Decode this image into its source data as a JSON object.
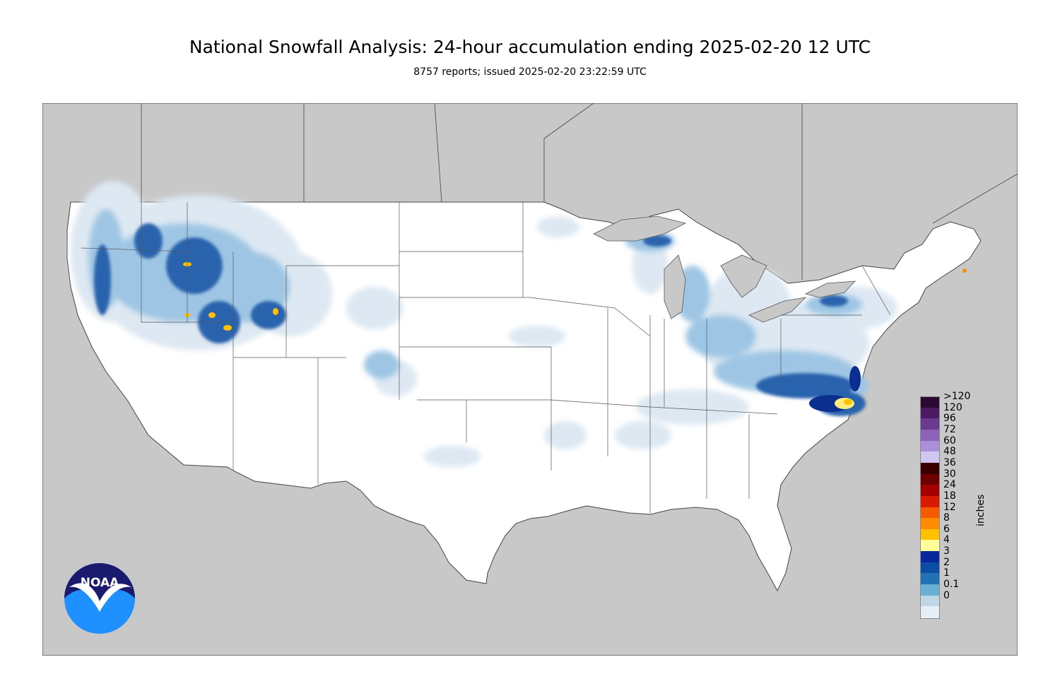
{
  "title": "National Snowfall Analysis: 24-hour accumulation ending 2025-02-20 12 UTC",
  "subtitle": "8757 reports; issued 2025-02-20 23:22:59 UTC",
  "map": {
    "background_color": "#c8c8c8",
    "land_color": "#ffffff",
    "border_color": "#555555"
  },
  "legend": {
    "units_label": "inches",
    "levels": [
      {
        "label": ">120",
        "color": "#2a0a33"
      },
      {
        "label": "120",
        "color": "#4b1a62"
      },
      {
        "label": "96",
        "color": "#6a3a8e"
      },
      {
        "label": "72",
        "color": "#8a62b8"
      },
      {
        "label": "60",
        "color": "#aa8fd9"
      },
      {
        "label": "48",
        "color": "#d0c6f2"
      },
      {
        "label": "36",
        "color": "#3a0000"
      },
      {
        "label": "30",
        "color": "#6e0000"
      },
      {
        "label": "24",
        "color": "#a40000"
      },
      {
        "label": "18",
        "color": "#d81a00"
      },
      {
        "label": "12",
        "color": "#f55a00"
      },
      {
        "label": "8",
        "color": "#ff8c00"
      },
      {
        "label": "6",
        "color": "#ffc000"
      },
      {
        "label": "4",
        "color": "#ffff99"
      },
      {
        "label": "3",
        "color": "#08279c"
      },
      {
        "label": "2",
        "color": "#0b4da2"
      },
      {
        "label": "1",
        "color": "#2171b5"
      },
      {
        "label": "0.1",
        "color": "#6baed6"
      },
      {
        "label": "0",
        "color": "#bdd7e7"
      },
      {
        "label": "",
        "color": "#e6eff6"
      }
    ]
  },
  "logo": {
    "text": "NOAA",
    "top_color": "#1a1a6e",
    "bottom_color": "#1e90ff"
  }
}
